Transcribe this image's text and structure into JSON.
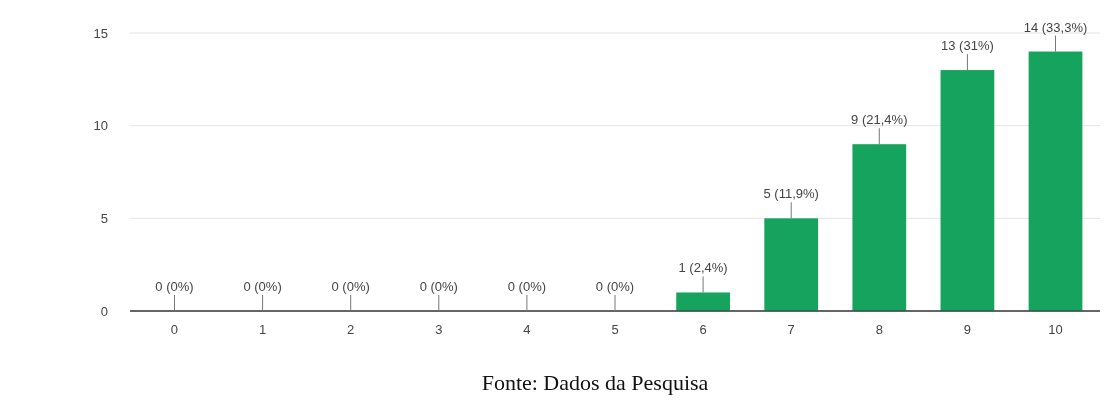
{
  "chart_data": {
    "type": "bar",
    "categories": [
      "0",
      "1",
      "2",
      "3",
      "4",
      "5",
      "6",
      "7",
      "8",
      "9",
      "10"
    ],
    "values": [
      0,
      0,
      0,
      0,
      0,
      0,
      1,
      5,
      9,
      13,
      14
    ],
    "value_labels": [
      "0 (0%)",
      "0 (0%)",
      "0 (0%)",
      "0 (0%)",
      "0 (0%)",
      "0 (0%)",
      "1 (2,4%)",
      "5 (11,9%)",
      "9 (21,4%)",
      "13 (31%)",
      "14 (33,3%)"
    ],
    "color": "#16a35d",
    "ylim": [
      0,
      15
    ],
    "yticks": [
      0,
      5,
      10,
      15
    ],
    "grid": "y",
    "annotations": [
      "Fonte: Dados da Pesquisa"
    ]
  }
}
